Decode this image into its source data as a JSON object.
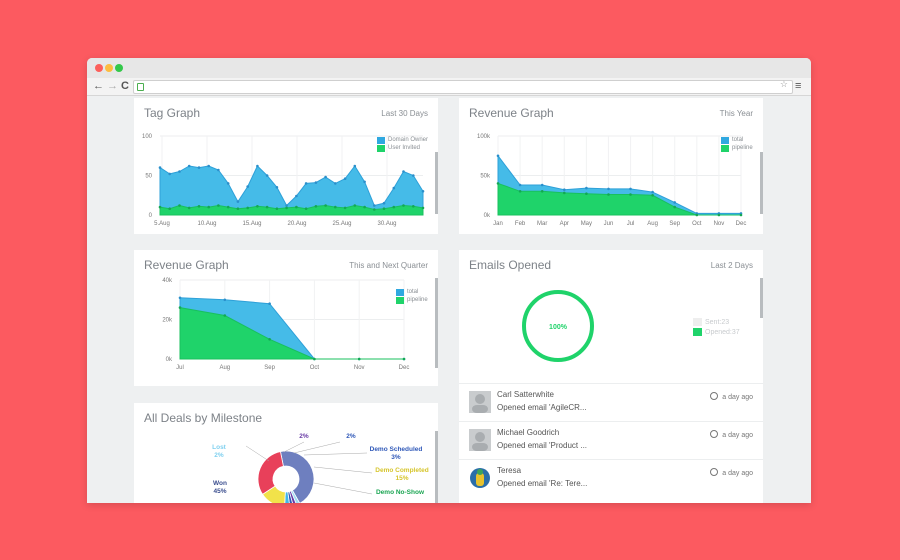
{
  "browser": {
    "nav_back": "←",
    "nav_forward": "→",
    "nav_reload": "C",
    "star": "☆",
    "menu": "≡"
  },
  "cards": {
    "tag_graph": {
      "title": "Tag Graph",
      "period": "Last 30 Days",
      "legend": [
        "Domain Owner",
        "User Invited"
      ],
      "colors": {
        "a": "#45bbe8",
        "b": "#1fd36a"
      }
    },
    "revenue_year": {
      "title": "Revenue Graph",
      "period": "This Year",
      "legend": [
        "total",
        "pipeline"
      ]
    },
    "revenue_quarter": {
      "title": "Revenue Graph",
      "period": "This and Next Quarter",
      "legend": [
        "total",
        "pipeline"
      ]
    },
    "emails": {
      "title": "Emails Opened",
      "period": "Last 2 Days",
      "center_label": "100%",
      "legend": [
        "Sent:23",
        "Opened:37"
      ]
    },
    "deals": {
      "title": "All Deals by Milestone"
    }
  },
  "feed": [
    {
      "name": "Carl Satterwhite",
      "action": "Opened email 'AgileCR...",
      "time": "a day ago"
    },
    {
      "name": "Michael Goodrich",
      "action": "Opened email 'Product ...",
      "time": "a day ago"
    },
    {
      "name": "Teresa",
      "action": "Opened email 'Re: Tere...",
      "time": "a day ago"
    }
  ],
  "chart_data": [
    {
      "type": "area",
      "title": "Tag Graph",
      "x_ticks": [
        "5.Aug",
        "10.Aug",
        "15.Aug",
        "20.Aug",
        "25.Aug",
        "30.Aug"
      ],
      "y_ticks": [
        "0",
        "50",
        "100"
      ],
      "ylim": [
        0,
        100
      ],
      "series": [
        {
          "name": "Domain Owner",
          "values": [
            60,
            52,
            55,
            62,
            60,
            62,
            57,
            40,
            17,
            36,
            62,
            50,
            35,
            12,
            24,
            40,
            41,
            48,
            40,
            46,
            62,
            42,
            12,
            15,
            34,
            55,
            50,
            30
          ]
        },
        {
          "name": "User Invited",
          "values": [
            10,
            8,
            12,
            9,
            11,
            10,
            12,
            10,
            8,
            9,
            11,
            10,
            8,
            9,
            10,
            8,
            11,
            12,
            10,
            9,
            12,
            10,
            7,
            8,
            10,
            12,
            11,
            9
          ]
        }
      ]
    },
    {
      "type": "area",
      "title": "Revenue Graph",
      "categories": [
        "Jan",
        "Feb",
        "Mar",
        "Apr",
        "May",
        "Jun",
        "Jul",
        "Aug",
        "Sep",
        "Oct",
        "Nov",
        "Dec"
      ],
      "y_ticks": [
        "0k",
        "50k",
        "100k"
      ],
      "ylim": [
        0,
        100000
      ],
      "series": [
        {
          "name": "total",
          "values": [
            75000,
            38000,
            38000,
            32000,
            34000,
            33000,
            33000,
            29000,
            16000,
            2000,
            2000,
            2000
          ]
        },
        {
          "name": "pipeline",
          "values": [
            40000,
            30000,
            30000,
            28000,
            27000,
            26000,
            26000,
            25000,
            10000,
            0,
            0,
            0
          ]
        }
      ]
    },
    {
      "type": "area",
      "title": "Revenue Graph",
      "categories": [
        "Jul",
        "Aug",
        "Sep",
        "Oct",
        "Nov",
        "Dec"
      ],
      "y_ticks": [
        "0k",
        "20k",
        "40k"
      ],
      "ylim": [
        0,
        40000
      ],
      "series": [
        {
          "name": "total",
          "values": [
            31000,
            30000,
            28000,
            0,
            0,
            0
          ]
        },
        {
          "name": "pipeline",
          "values": [
            26000,
            22000,
            10000,
            0,
            0,
            0
          ]
        }
      ]
    },
    {
      "type": "pie",
      "title": "All Deals by Milestone",
      "slices": [
        {
          "label": "Won",
          "value": 45,
          "text": "45%",
          "color": "#6e7fbf"
        },
        {
          "label": "Lost",
          "value": 2,
          "text": "2%",
          "color": "#9fdcf3"
        },
        {
          "label": "",
          "value": 2,
          "text": "2%",
          "color": "#6a3ca6"
        },
        {
          "label": "",
          "value": 2,
          "text": "2%",
          "color": "#2f58b8"
        },
        {
          "label": "Demo Scheduled",
          "value": 3,
          "text": "3%",
          "color": "#40b7e8"
        },
        {
          "label": "Demo Completed",
          "value": 15,
          "text": "15%",
          "color": "#f1e24a"
        },
        {
          "label": "Demo No-Show",
          "value": 31,
          "text": "",
          "color": "#e8405a"
        }
      ]
    }
  ]
}
